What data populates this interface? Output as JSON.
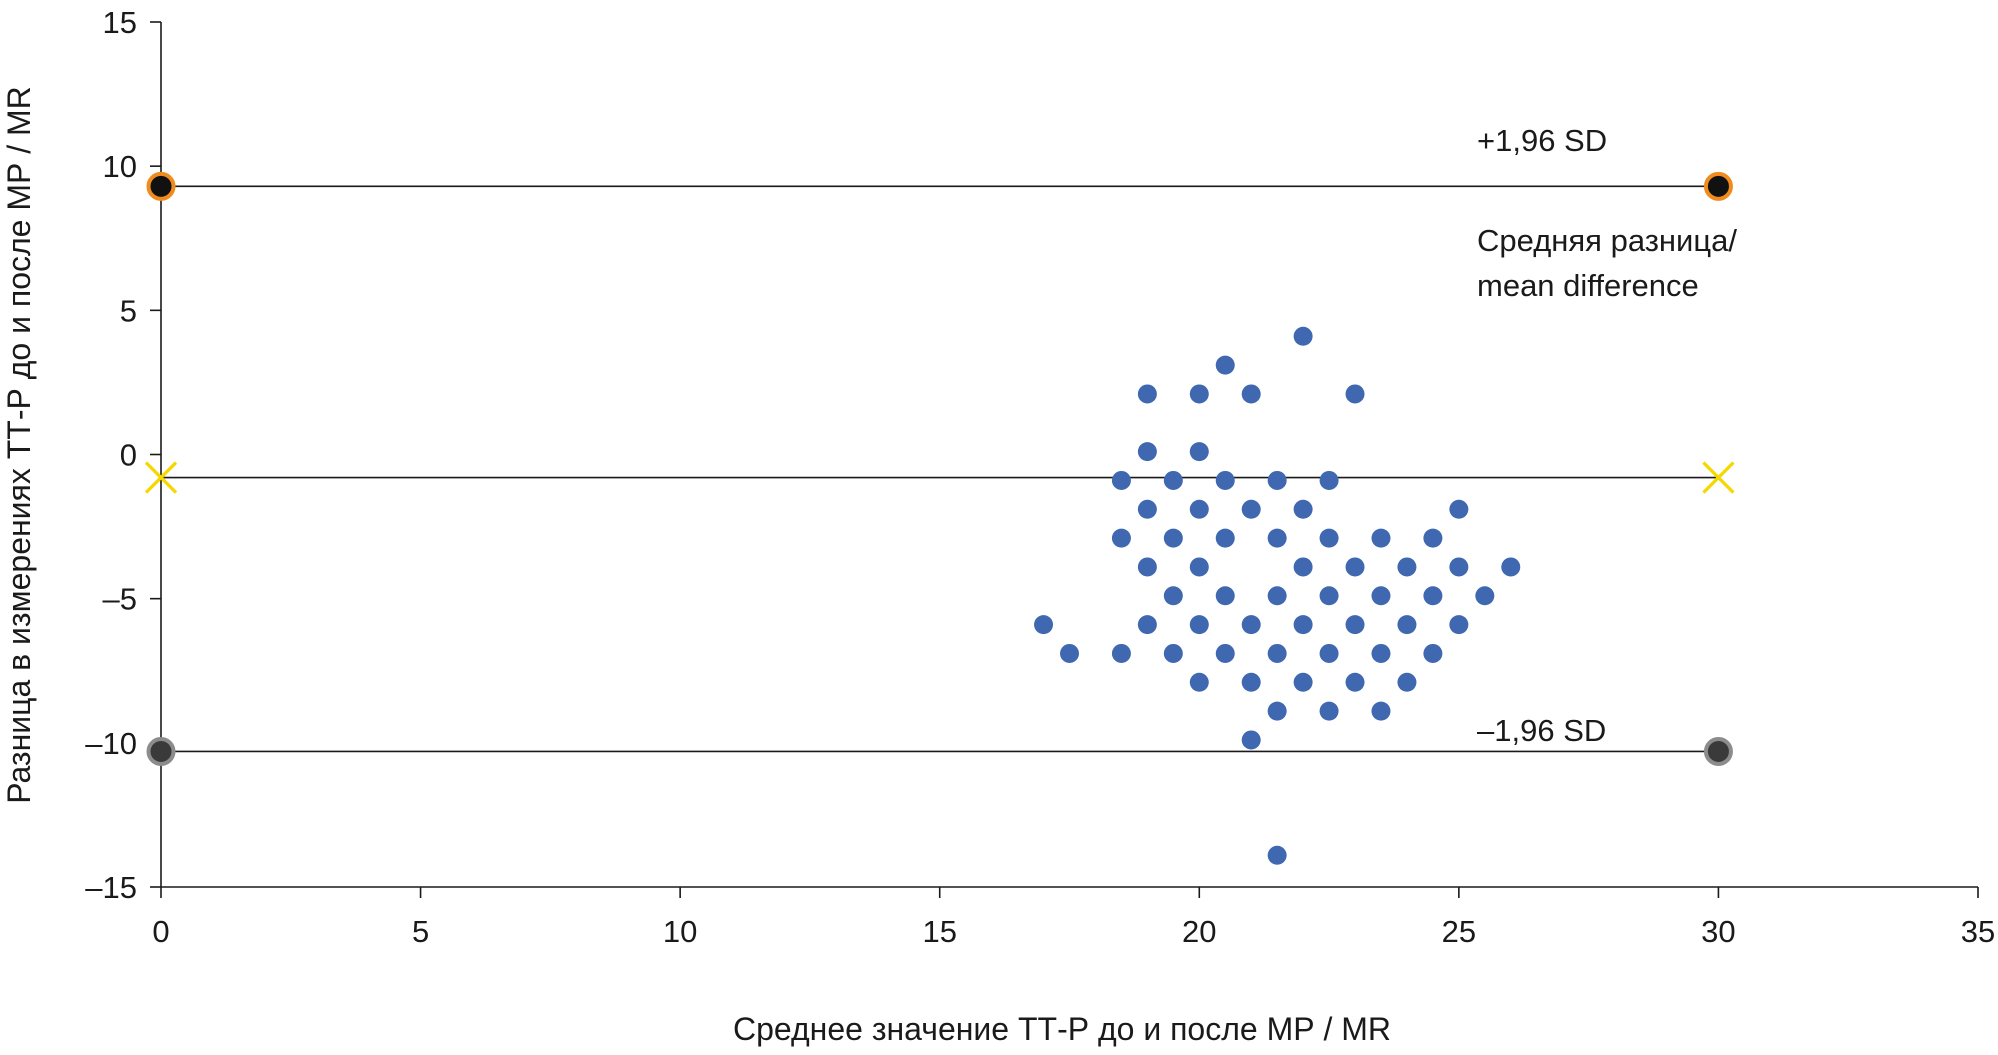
{
  "chart_data": {
    "type": "scatter",
    "xlabel": "Среднее значение ТТ-Р до и после МР / MR",
    "ylabel": "Разница в измерениях ТТ-Р до и после МР / MR",
    "xlim": [
      0,
      35
    ],
    "ylim": [
      -15,
      15
    ],
    "xticks": [
      "0",
      "5",
      "10",
      "15",
      "20",
      "25",
      "30",
      "35"
    ],
    "yticks": [
      "15",
      "10",
      "5",
      "0",
      "–5",
      "–10",
      "–15"
    ],
    "grid": false,
    "reference_lines": [
      {
        "name": "upper",
        "y": 9.3,
        "x": [
          0,
          30
        ],
        "marker": "circle",
        "fill": "#111111",
        "edge": "#f08c1e"
      },
      {
        "name": "mean",
        "y": -0.8,
        "x": [
          0,
          30
        ],
        "marker": "x",
        "color": "#f5d800"
      },
      {
        "name": "lower",
        "y": -10.3,
        "x": [
          0,
          30
        ],
        "marker": "circle",
        "fill": "#3a3a3a",
        "edge": "#8c8c8c"
      }
    ],
    "annotations": {
      "upper_label": "+1,96 SD",
      "mean_label_line1": "Средняя разница/",
      "mean_label_line2": "mean difference",
      "lower_label": "–1,96 SD"
    },
    "point_color": "#3f68b0",
    "points": [
      [
        22,
        4.1
      ],
      [
        20.5,
        3.1
      ],
      [
        19,
        2.1
      ],
      [
        20,
        2.1
      ],
      [
        21,
        2.1
      ],
      [
        23,
        2.1
      ],
      [
        19,
        0.1
      ],
      [
        20,
        0.1
      ],
      [
        18.5,
        -0.9
      ],
      [
        19.5,
        -0.9
      ],
      [
        20.5,
        -0.9
      ],
      [
        21.5,
        -0.9
      ],
      [
        22.5,
        -0.9
      ],
      [
        19,
        -1.9
      ],
      [
        20,
        -1.9
      ],
      [
        21,
        -1.9
      ],
      [
        22,
        -1.9
      ],
      [
        25,
        -1.9
      ],
      [
        18.5,
        -2.9
      ],
      [
        19.5,
        -2.9
      ],
      [
        20.5,
        -2.9
      ],
      [
        21.5,
        -2.9
      ],
      [
        22.5,
        -2.9
      ],
      [
        23.5,
        -2.9
      ],
      [
        24.5,
        -2.9
      ],
      [
        19,
        -3.9
      ],
      [
        20,
        -3.9
      ],
      [
        22,
        -3.9
      ],
      [
        23,
        -3.9
      ],
      [
        24,
        -3.9
      ],
      [
        25,
        -3.9
      ],
      [
        26,
        -3.9
      ],
      [
        19.5,
        -4.9
      ],
      [
        20.5,
        -4.9
      ],
      [
        21.5,
        -4.9
      ],
      [
        22.5,
        -4.9
      ],
      [
        23.5,
        -4.9
      ],
      [
        24.5,
        -4.9
      ],
      [
        25.5,
        -4.9
      ],
      [
        17,
        -5.9
      ],
      [
        19,
        -5.9
      ],
      [
        20,
        -5.9
      ],
      [
        21,
        -5.9
      ],
      [
        22,
        -5.9
      ],
      [
        23,
        -5.9
      ],
      [
        24,
        -5.9
      ],
      [
        25,
        -5.9
      ],
      [
        17.5,
        -6.9
      ],
      [
        18.5,
        -6.9
      ],
      [
        19.5,
        -6.9
      ],
      [
        20.5,
        -6.9
      ],
      [
        21.5,
        -6.9
      ],
      [
        22.5,
        -6.9
      ],
      [
        23.5,
        -6.9
      ],
      [
        24.5,
        -6.9
      ],
      [
        20,
        -7.9
      ],
      [
        21,
        -7.9
      ],
      [
        22,
        -7.9
      ],
      [
        23,
        -7.9
      ],
      [
        24,
        -7.9
      ],
      [
        21.5,
        -8.9
      ],
      [
        22.5,
        -8.9
      ],
      [
        23.5,
        -8.9
      ],
      [
        21,
        -9.9
      ],
      [
        21.5,
        -13.9
      ]
    ]
  }
}
